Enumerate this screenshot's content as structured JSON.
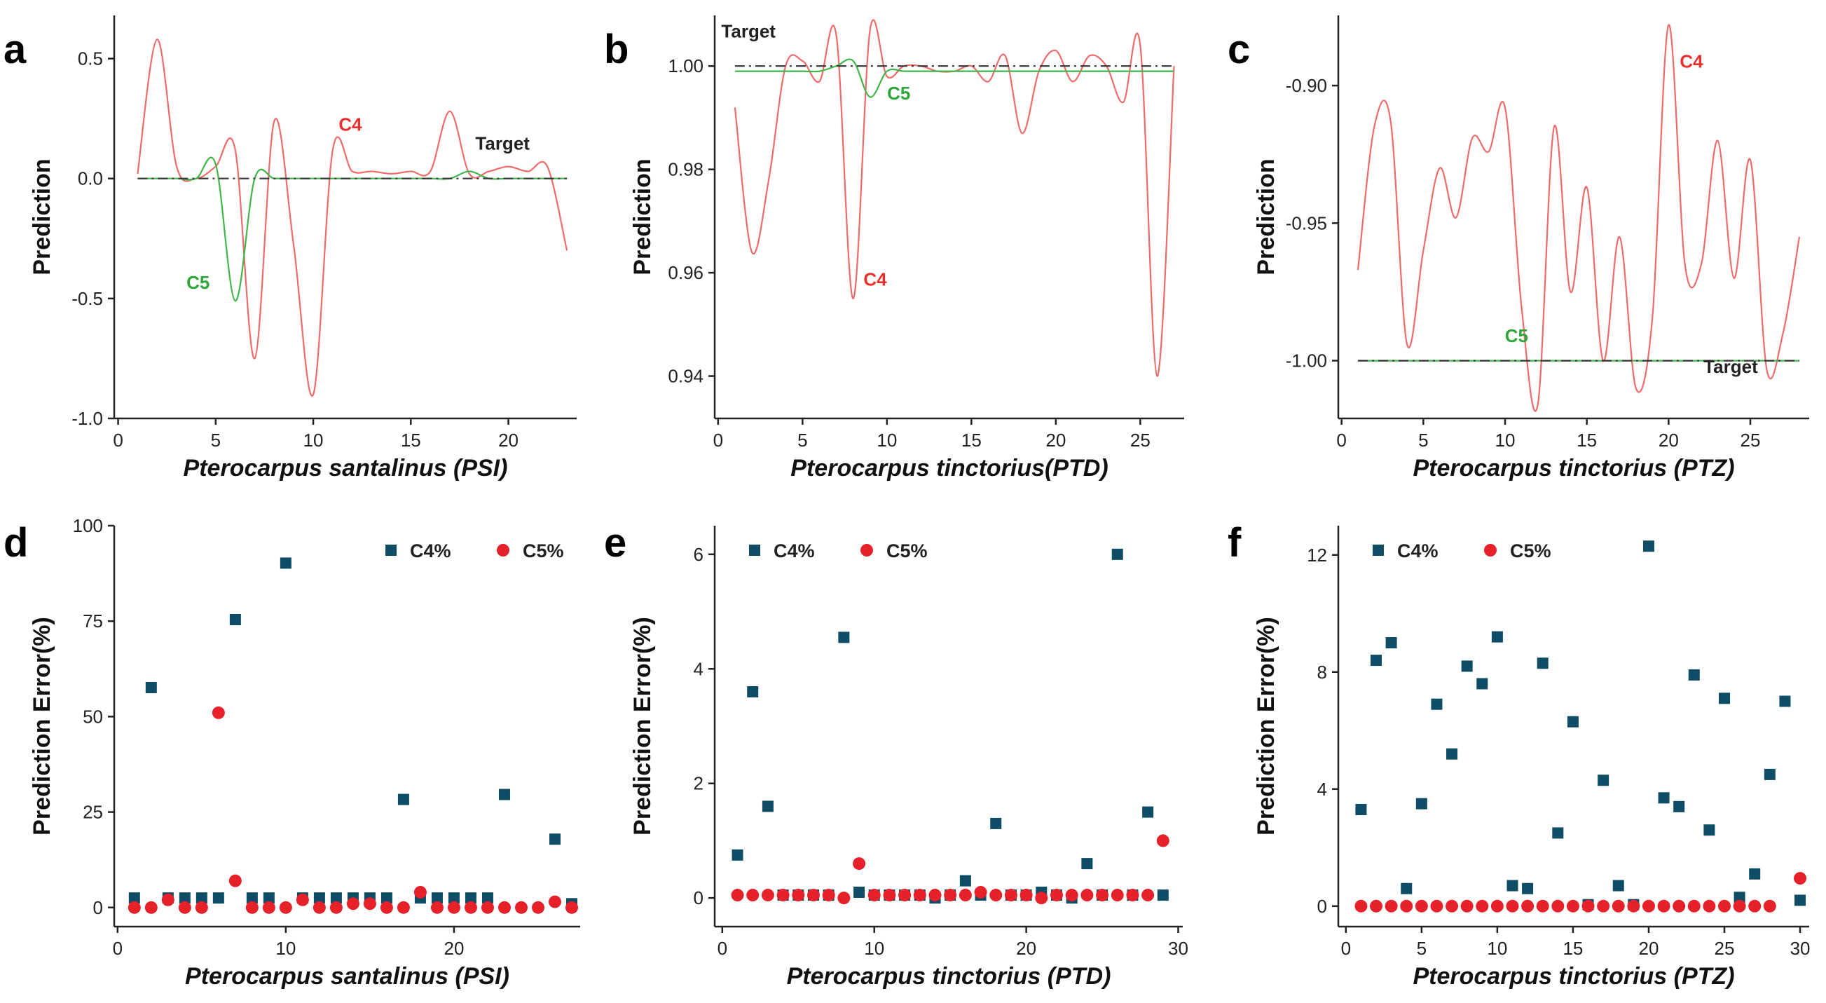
{
  "colors": {
    "c4_line": "#ef6b6b",
    "c5_line": "#3fb54a",
    "target_line": "#333333",
    "c4_marker": "#0f4c66",
    "c5_marker": "#e62129"
  },
  "chart_data": [
    {
      "type": "line",
      "panel": "a",
      "xlabel": "Pterocarpus santalinus (PSI)",
      "ylabel": "Prediction",
      "xlim": [
        -0.2,
        23.5
      ],
      "ylim": [
        -1.0,
        0.68
      ],
      "xticks": [
        0,
        5,
        10,
        15,
        20
      ],
      "yticks": [
        -1.0,
        -0.5,
        0.0,
        0.5
      ],
      "ytick_labels": [
        "-1.0",
        "-0.5",
        "0.0",
        "0.5"
      ],
      "series": [
        {
          "name": "C4",
          "x": [
            1,
            2,
            3,
            4,
            5,
            6,
            7,
            8,
            9,
            10,
            11,
            12,
            13,
            14,
            15,
            16,
            17,
            18,
            19,
            20,
            21,
            22,
            23
          ],
          "values": [
            0.02,
            0.58,
            0.05,
            0.0,
            0.05,
            0.12,
            -0.75,
            0.24,
            -0.28,
            -0.9,
            0.12,
            0.03,
            0.03,
            0.02,
            0.03,
            0.03,
            0.28,
            0.02,
            0.03,
            0.05,
            0.03,
            0.05,
            -0.3
          ]
        },
        {
          "name": "C5",
          "x": [
            1,
            2,
            3,
            4,
            5,
            6,
            7,
            8,
            9,
            10,
            11,
            12,
            13,
            14,
            15,
            16,
            17,
            18,
            19,
            20,
            21,
            22,
            23
          ],
          "values": [
            0.0,
            0.0,
            0.0,
            0.0,
            0.06,
            -0.51,
            0.0,
            0.0,
            0.0,
            0.0,
            0.0,
            0.0,
            0.0,
            0.0,
            0.0,
            0.0,
            0.0,
            0.03,
            0.0,
            0.0,
            0.0,
            0.0,
            0.0
          ]
        },
        {
          "name": "Target",
          "x": [
            1,
            23
          ],
          "values": [
            0.0,
            0.0
          ]
        }
      ],
      "annotations": [
        {
          "text": "C4",
          "x": 11.9,
          "y": 0.2
        },
        {
          "text": "C5",
          "x": 4.1,
          "y": -0.46
        },
        {
          "text": "Target",
          "x": 19.7,
          "y": 0.12
        }
      ]
    },
    {
      "type": "line",
      "panel": "b",
      "xlabel": "Pterocarpus tinctorius(PTD)",
      "ylabel": "Prediction",
      "xlim": [
        -0.2,
        27.6
      ],
      "ylim": [
        0.9318,
        1.0098
      ],
      "xticks": [
        0,
        5,
        10,
        15,
        20,
        25
      ],
      "yticks": [
        0.94,
        0.96,
        0.98,
        1.0
      ],
      "ytick_labels": [
        "0.94",
        "0.96",
        "0.98",
        "1.00"
      ],
      "series": [
        {
          "name": "C4",
          "x": [
            1,
            2,
            3,
            4,
            5,
            6,
            7,
            8,
            9,
            10,
            11,
            12,
            13,
            14,
            15,
            16,
            17,
            18,
            19,
            20,
            21,
            22,
            23,
            24,
            25,
            26,
            27
          ],
          "values": [
            0.992,
            0.964,
            0.978,
            1.0,
            1.001,
            0.997,
            1.006,
            0.955,
            1.007,
            0.998,
            1.0,
            1.0,
            0.999,
            0.999,
            1.0,
            0.997,
            1.002,
            0.987,
            0.999,
            1.003,
            0.997,
            1.002,
            1.0,
            0.993,
            1.004,
            0.94,
            1.0
          ]
        },
        {
          "name": "C5",
          "x": [
            1,
            2,
            3,
            4,
            5,
            6,
            7,
            8,
            9,
            10,
            11,
            12,
            13,
            14,
            15,
            16,
            17,
            18,
            19,
            20,
            21,
            22,
            23,
            24,
            25,
            26,
            27
          ],
          "values": [
            0.999,
            0.999,
            0.999,
            0.999,
            0.999,
            0.999,
            1.0,
            1.001,
            0.994,
            0.999,
            0.999,
            0.999,
            0.999,
            0.999,
            0.999,
            0.999,
            0.999,
            0.999,
            0.999,
            0.999,
            0.999,
            0.999,
            0.999,
            0.999,
            0.999,
            0.999,
            0.999
          ]
        },
        {
          "name": "Target",
          "x": [
            1,
            27
          ],
          "values": [
            1.0,
            1.0
          ]
        }
      ],
      "annotations": [
        {
          "text": "Target",
          "x": 1.8,
          "y": 1.0055
        },
        {
          "text": "C5",
          "x": 10.7,
          "y": 0.9935
        },
        {
          "text": "C4",
          "x": 9.3,
          "y": 0.9575
        }
      ]
    },
    {
      "type": "line",
      "panel": "c",
      "xlabel": "Pterocarpus tinctorius (PTZ)",
      "ylabel": "Prediction",
      "xlim": [
        -0.2,
        28.6
      ],
      "ylim": [
        -1.021,
        -0.8745
      ],
      "xticks": [
        0,
        5,
        10,
        15,
        20,
        25
      ],
      "yticks": [
        -1.0,
        -0.95,
        -0.9
      ],
      "ytick_labels": [
        "-1.00",
        "-0.95",
        "-0.90"
      ],
      "series": [
        {
          "name": "C4",
          "x": [
            1,
            2,
            3,
            4,
            5,
            6,
            7,
            8,
            9,
            10,
            11,
            12,
            13,
            14,
            15,
            16,
            17,
            18,
            19,
            20,
            21,
            22,
            23,
            24,
            25,
            26,
            27,
            28
          ],
          "values": [
            -0.967,
            -0.915,
            -0.913,
            -0.994,
            -0.96,
            -0.93,
            -0.948,
            -0.919,
            -0.924,
            -0.908,
            -0.98,
            -1.016,
            -0.915,
            -0.975,
            -0.937,
            -1.0,
            -0.955,
            -1.01,
            -0.985,
            -0.878,
            -0.965,
            -0.965,
            -0.92,
            -0.97,
            -0.927,
            -1.003,
            -0.99,
            -0.955
          ]
        },
        {
          "name": "C5",
          "x": [
            1,
            28
          ],
          "values": [
            -1.0,
            -1.0
          ]
        },
        {
          "name": "Target",
          "x": [
            1,
            28
          ],
          "values": [
            -1.0,
            -1.0
          ]
        }
      ],
      "annotations": [
        {
          "text": "C4",
          "x": 21.4,
          "y": -0.8935
        },
        {
          "text": "C5",
          "x": 10.7,
          "y": -0.9932
        },
        {
          "text": "Target",
          "x": 23.8,
          "y": -1.0045
        }
      ]
    },
    {
      "type": "scatter",
      "panel": "d",
      "xlabel": "Pterocarpus santalinus (PSI)",
      "ylabel": "Prediction Error(%)",
      "xlim": [
        -0.2,
        27.5
      ],
      "ylim": [
        -5,
        100
      ],
      "xticks": [
        0,
        10,
        20
      ],
      "yticks": [
        0,
        25,
        50,
        75,
        100
      ],
      "ytick_labels": [
        "0",
        "25",
        "50",
        "75",
        "100"
      ],
      "legend_position": "top-right",
      "series": [
        {
          "name": "C4%",
          "marker": "square",
          "x": [
            1,
            2,
            3,
            4,
            5,
            6,
            7,
            8,
            9,
            10,
            11,
            12,
            13,
            14,
            15,
            16,
            17,
            18,
            19,
            20,
            21,
            22,
            23,
            26,
            27
          ],
          "values": [
            2.5,
            57.6,
            2.5,
            2.5,
            2.5,
            2.5,
            75.4,
            2.5,
            2.5,
            90.2,
            2.5,
            2.5,
            2.5,
            2.5,
            2.5,
            2.5,
            28.3,
            2.5,
            2.5,
            2.5,
            2.5,
            2.5,
            29.6,
            17.9,
            1.0
          ]
        },
        {
          "name": "C5%",
          "marker": "circle",
          "x": [
            1,
            2,
            3,
            4,
            5,
            6,
            7,
            8,
            9,
            10,
            11,
            12,
            13,
            14,
            15,
            16,
            17,
            18,
            19,
            20,
            21,
            22,
            23,
            24,
            25,
            26,
            27
          ],
          "values": [
            0,
            0,
            2,
            0,
            0,
            51,
            7,
            0,
            0,
            0,
            2,
            0,
            0,
            1,
            1,
            0,
            0,
            4,
            0,
            0,
            0,
            0,
            0,
            0,
            0,
            1.5,
            0
          ]
        }
      ]
    },
    {
      "type": "scatter",
      "panel": "e",
      "xlabel": "Pterocarpus tinctorius (PTD)",
      "ylabel": "Prediction Error(%)",
      "xlim": [
        -0.5,
        30.3
      ],
      "ylim": [
        -0.5,
        6.5
      ],
      "xticks": [
        0,
        10,
        20,
        30
      ],
      "yticks": [
        0,
        2,
        4,
        6
      ],
      "ytick_labels": [
        "0",
        "2",
        "4",
        "6"
      ],
      "legend_position": "top-left",
      "series": [
        {
          "name": "C4%",
          "marker": "square",
          "x": [
            1,
            2,
            3,
            4,
            5,
            6,
            7,
            8,
            9,
            10,
            11,
            12,
            13,
            14,
            15,
            16,
            17,
            18,
            19,
            20,
            21,
            22,
            23,
            24,
            25,
            26,
            27,
            28,
            29
          ],
          "values": [
            0.75,
            3.6,
            1.6,
            0.05,
            0.05,
            0.05,
            0.05,
            4.55,
            0.1,
            0.05,
            0.05,
            0.05,
            0.05,
            0.0,
            0.05,
            0.3,
            0.05,
            1.3,
            0.05,
            0.05,
            0.1,
            0.05,
            0.0,
            0.6,
            0.05,
            6.0,
            0.05,
            1.5,
            0.05
          ]
        },
        {
          "name": "C5%",
          "marker": "circle",
          "x": [
            1,
            2,
            3,
            4,
            5,
            6,
            7,
            8,
            9,
            10,
            11,
            12,
            13,
            14,
            15,
            16,
            17,
            18,
            19,
            20,
            21,
            22,
            23,
            24,
            25,
            26,
            27,
            28,
            29
          ],
          "values": [
            0.05,
            0.05,
            0.05,
            0.05,
            0.05,
            0.05,
            0.05,
            0.0,
            0.6,
            0.05,
            0.05,
            0.05,
            0.05,
            0.05,
            0.05,
            0.05,
            0.1,
            0.05,
            0.05,
            0.05,
            0.0,
            0.05,
            0.05,
            0.05,
            0.05,
            0.05,
            0.05,
            0.05,
            1.0
          ]
        }
      ]
    },
    {
      "type": "scatter",
      "panel": "f",
      "xlabel": "Pterocarpus tinctorius (PTZ)",
      "ylabel": "Prediction Error(%)",
      "xlim": [
        -0.5,
        30.6
      ],
      "ylim": [
        -0.7,
        13.0
      ],
      "xticks": [
        0,
        5,
        10,
        15,
        20,
        25,
        30
      ],
      "yticks": [
        0,
        4,
        8,
        12
      ],
      "ytick_labels": [
        "0",
        "4",
        "8",
        "12"
      ],
      "legend_position": "top-left",
      "series": [
        {
          "name": "C4%",
          "marker": "square",
          "x": [
            1,
            2,
            3,
            4,
            5,
            6,
            7,
            8,
            9,
            10,
            11,
            12,
            13,
            14,
            15,
            16,
            17,
            18,
            19,
            20,
            21,
            22,
            23,
            24,
            25,
            26,
            27,
            28,
            29,
            30
          ],
          "values": [
            3.3,
            8.4,
            9.0,
            0.6,
            3.5,
            6.9,
            5.2,
            8.2,
            7.6,
            9.2,
            0.7,
            0.6,
            8.3,
            2.5,
            6.3,
            0.05,
            4.3,
            0.7,
            0.05,
            12.3,
            3.7,
            3.4,
            7.9,
            2.6,
            7.1,
            0.3,
            1.1,
            4.5,
            7.0,
            0.2
          ]
        },
        {
          "name": "C5%",
          "marker": "circle",
          "x": [
            1,
            2,
            3,
            4,
            5,
            6,
            7,
            8,
            9,
            10,
            11,
            12,
            13,
            14,
            15,
            16,
            17,
            18,
            19,
            20,
            21,
            22,
            23,
            24,
            25,
            26,
            27,
            28,
            30
          ],
          "values": [
            0,
            0,
            0,
            0,
            0,
            0,
            0,
            0,
            0,
            0,
            0,
            0,
            0,
            0,
            0,
            0,
            0,
            0,
            0,
            0,
            0,
            0,
            0,
            0,
            0,
            0,
            0,
            0,
            0.95
          ]
        }
      ]
    }
  ]
}
